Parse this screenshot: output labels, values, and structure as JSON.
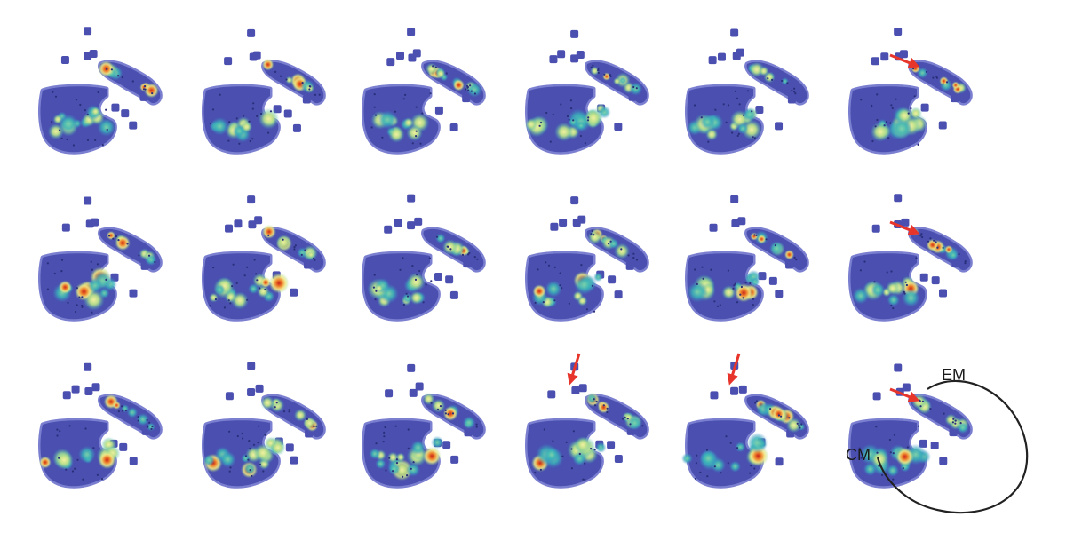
{
  "figure": {
    "rows": 3,
    "cols": 6,
    "arrow_color": "#e8352b",
    "outline_color": "#222222",
    "colormap": [
      "#4a4fb0",
      "#3f86c6",
      "#38b3b8",
      "#9bd87c",
      "#f3ec8a",
      "#f6a03c",
      "#d9231f"
    ],
    "panels_with_arrow": [
      {
        "row": 0,
        "col": 5,
        "arrow_direction": "from-left"
      },
      {
        "row": 1,
        "col": 5,
        "arrow_direction": "from-left"
      },
      {
        "row": 2,
        "col": 3,
        "arrow_direction": "from-top"
      },
      {
        "row": 2,
        "col": 4,
        "arrow_direction": "from-top"
      },
      {
        "row": 2,
        "col": 5,
        "arrow_direction": "from-left"
      }
    ],
    "labels": {
      "em": "EM",
      "cm": "CM"
    }
  }
}
